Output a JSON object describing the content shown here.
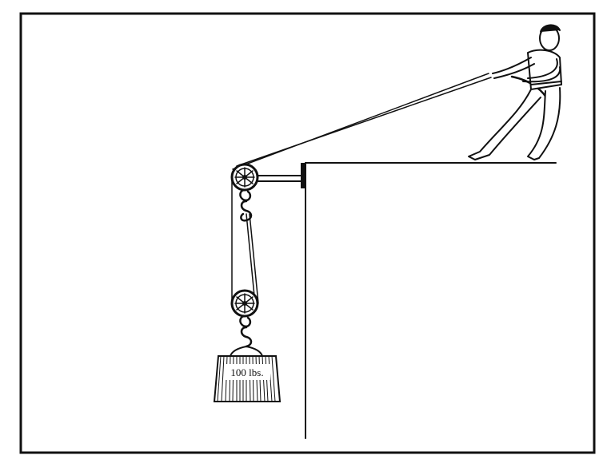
{
  "figure": {
    "weight_label": "100 lbs.",
    "colors": {
      "ink": "#111111",
      "background": "#ffffff"
    },
    "elements": [
      "frame",
      "building-edge",
      "support-bracket",
      "fixed-pulley",
      "movable-pulley",
      "rope",
      "hooks",
      "weight",
      "person-pulling"
    ]
  }
}
